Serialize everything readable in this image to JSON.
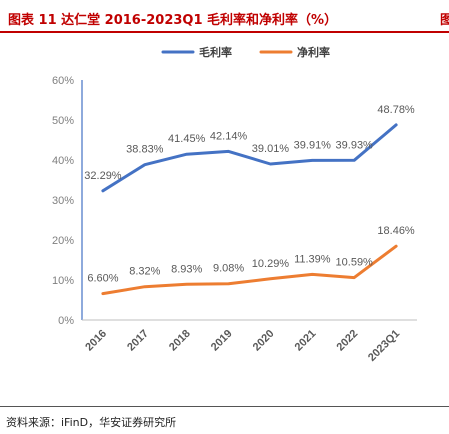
{
  "figure": {
    "title": "图表 11 达仁堂 2016-2023Q1 毛利率和净利率（%）",
    "title_next": "图",
    "source": "资料来源：iFinD，华安证券研究所"
  },
  "colors": {
    "title": "#c00000",
    "gross": "#4472c4",
    "net": "#ed7d31"
  },
  "chart_data": {
    "type": "line",
    "categories": [
      "2016",
      "2017",
      "2018",
      "2019",
      "2020",
      "2021",
      "2022",
      "2023Q1"
    ],
    "series": [
      {
        "name": "毛利率",
        "values": [
          32.29,
          38.83,
          41.45,
          42.14,
          39.01,
          39.91,
          39.93,
          48.78
        ],
        "labels": [
          "32.29%",
          "38.83%",
          "41.45%",
          "42.14%",
          "39.01%",
          "39.91%",
          "39.93%",
          "48.78%"
        ]
      },
      {
        "name": "净利率",
        "values": [
          6.6,
          8.32,
          8.93,
          9.08,
          10.29,
          11.39,
          10.59,
          18.46
        ],
        "labels": [
          "6.60%",
          "8.32%",
          "8.93%",
          "9.08%",
          "10.29%",
          "11.39%",
          "10.59%",
          "18.46%"
        ]
      }
    ],
    "yticks": [
      "0%",
      "10%",
      "20%",
      "30%",
      "40%",
      "50%",
      "60%"
    ],
    "ylim": [
      0,
      60
    ],
    "grid": false,
    "legend": "top-center"
  }
}
